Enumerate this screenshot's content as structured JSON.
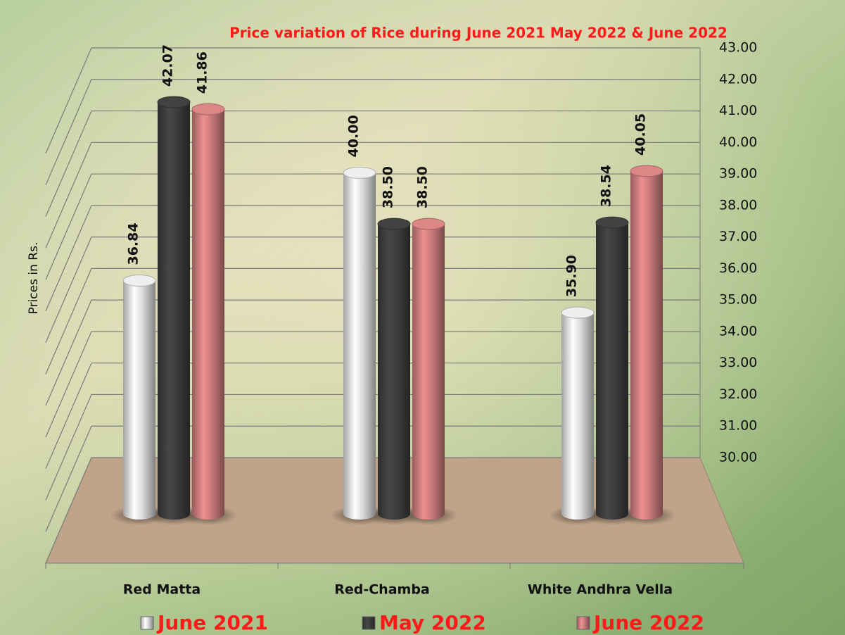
{
  "chart_data": {
    "type": "bar",
    "title": "Price variation of Rice during  June 2021  May 2022  &  June 2022",
    "ylabel": "Prices in Rs.",
    "categories": [
      "Red Matta",
      "Red-Chamba",
      "White Andhra Vella"
    ],
    "series": [
      {
        "name": "June 2021",
        "color": "#d9d9d9",
        "values": [
          36.84,
          40.0,
          35.9
        ],
        "value_labels": [
          "36.84",
          "40.00",
          "35.90"
        ]
      },
      {
        "name": "May 2022",
        "color": "#3c3c3c",
        "values": [
          42.07,
          38.5,
          38.54
        ],
        "value_labels": [
          "42.07",
          "38.50",
          "38.54"
        ]
      },
      {
        "name": "June 2022",
        "color": "#c97a7a",
        "values": [
          41.86,
          38.5,
          40.05
        ],
        "value_labels": [
          "41.86",
          "38.50",
          "40.05"
        ]
      }
    ],
    "ylim": [
      30,
      43
    ],
    "yticks": [
      {
        "value": 30,
        "label": "30.00"
      },
      {
        "value": 31,
        "label": "31.00"
      },
      {
        "value": 32,
        "label": "32.00"
      },
      {
        "value": 33,
        "label": "33.00"
      },
      {
        "value": 34,
        "label": "34.00"
      },
      {
        "value": 35,
        "label": "35.00"
      },
      {
        "value": 36,
        "label": "36.00"
      },
      {
        "value": 37,
        "label": "37.00"
      },
      {
        "value": 38,
        "label": "38.00"
      },
      {
        "value": 39,
        "label": "39.00"
      },
      {
        "value": 40,
        "label": "40.00"
      },
      {
        "value": 41,
        "label": "41.00"
      },
      {
        "value": 42,
        "label": "42.00"
      },
      {
        "value": 43,
        "label": "43.00"
      }
    ],
    "grid": true
  }
}
